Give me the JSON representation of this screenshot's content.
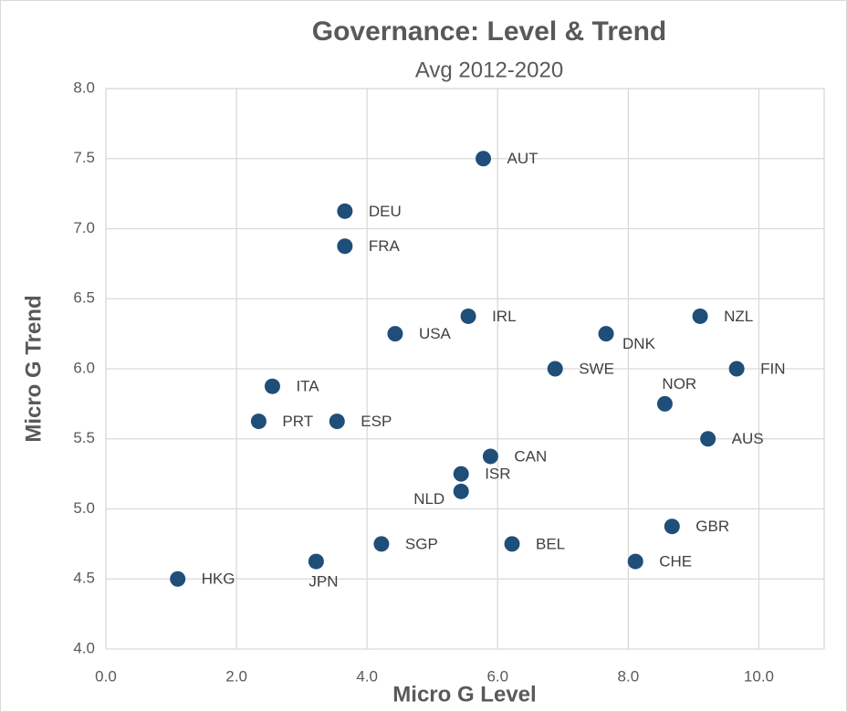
{
  "chart_data": {
    "type": "scatter",
    "title": "Governance: Level & Trend",
    "subtitle": "Avg 2012-2020",
    "x_label": "Micro G Level",
    "y_label": "Micro G Trend",
    "xlim": [
      0,
      11
    ],
    "ylim": [
      4.0,
      8.0
    ],
    "xticks": [
      {
        "value": 0,
        "label": "0.0"
      },
      {
        "value": 2,
        "label": "2.0"
      },
      {
        "value": 4,
        "label": "4.0"
      },
      {
        "value": 6,
        "label": "6.0"
      },
      {
        "value": 8,
        "label": "8.0"
      },
      {
        "value": 10,
        "label": "10.0"
      }
    ],
    "yticks": [
      {
        "value": 4,
        "label": "4.0"
      },
      4.5,
      {
        "value": 5,
        "label": "5.0"
      },
      5.5,
      {
        "value": 6,
        "label": "6.0"
      },
      6.5,
      {
        "value": 7,
        "label": "7.0"
      },
      7.5,
      {
        "value": 8,
        "label": "8.0"
      }
    ],
    "grid": true,
    "color": "#1f4e79",
    "labels": [
      "AUT",
      "DEU",
      "FRA",
      "IRL",
      "USA",
      "DNK",
      "NZL",
      "SWE",
      "FIN",
      "ITA",
      "NOR",
      "PRT",
      "ESP",
      "AUS",
      "CAN",
      "ISR",
      "NLD",
      "GBR",
      "SGP",
      "BEL",
      "CHE",
      "JPN",
      "HKG"
    ],
    "x": [
      5.78,
      3.66,
      3.66,
      5.55,
      4.43,
      7.66,
      9.1,
      6.88,
      9.66,
      2.55,
      8.56,
      2.34,
      3.54,
      9.22,
      5.89,
      5.44,
      5.44,
      8.67,
      4.22,
      6.22,
      8.11,
      3.22,
      1.1
    ],
    "values": [
      7.5,
      7.125,
      6.875,
      6.375,
      6.25,
      6.25,
      6.375,
      6.0,
      6.0,
      5.875,
      5.75,
      5.625,
      5.625,
      5.5,
      5.375,
      5.25,
      5.125,
      4.875,
      4.75,
      4.75,
      4.625,
      4.625,
      4.5
    ]
  }
}
